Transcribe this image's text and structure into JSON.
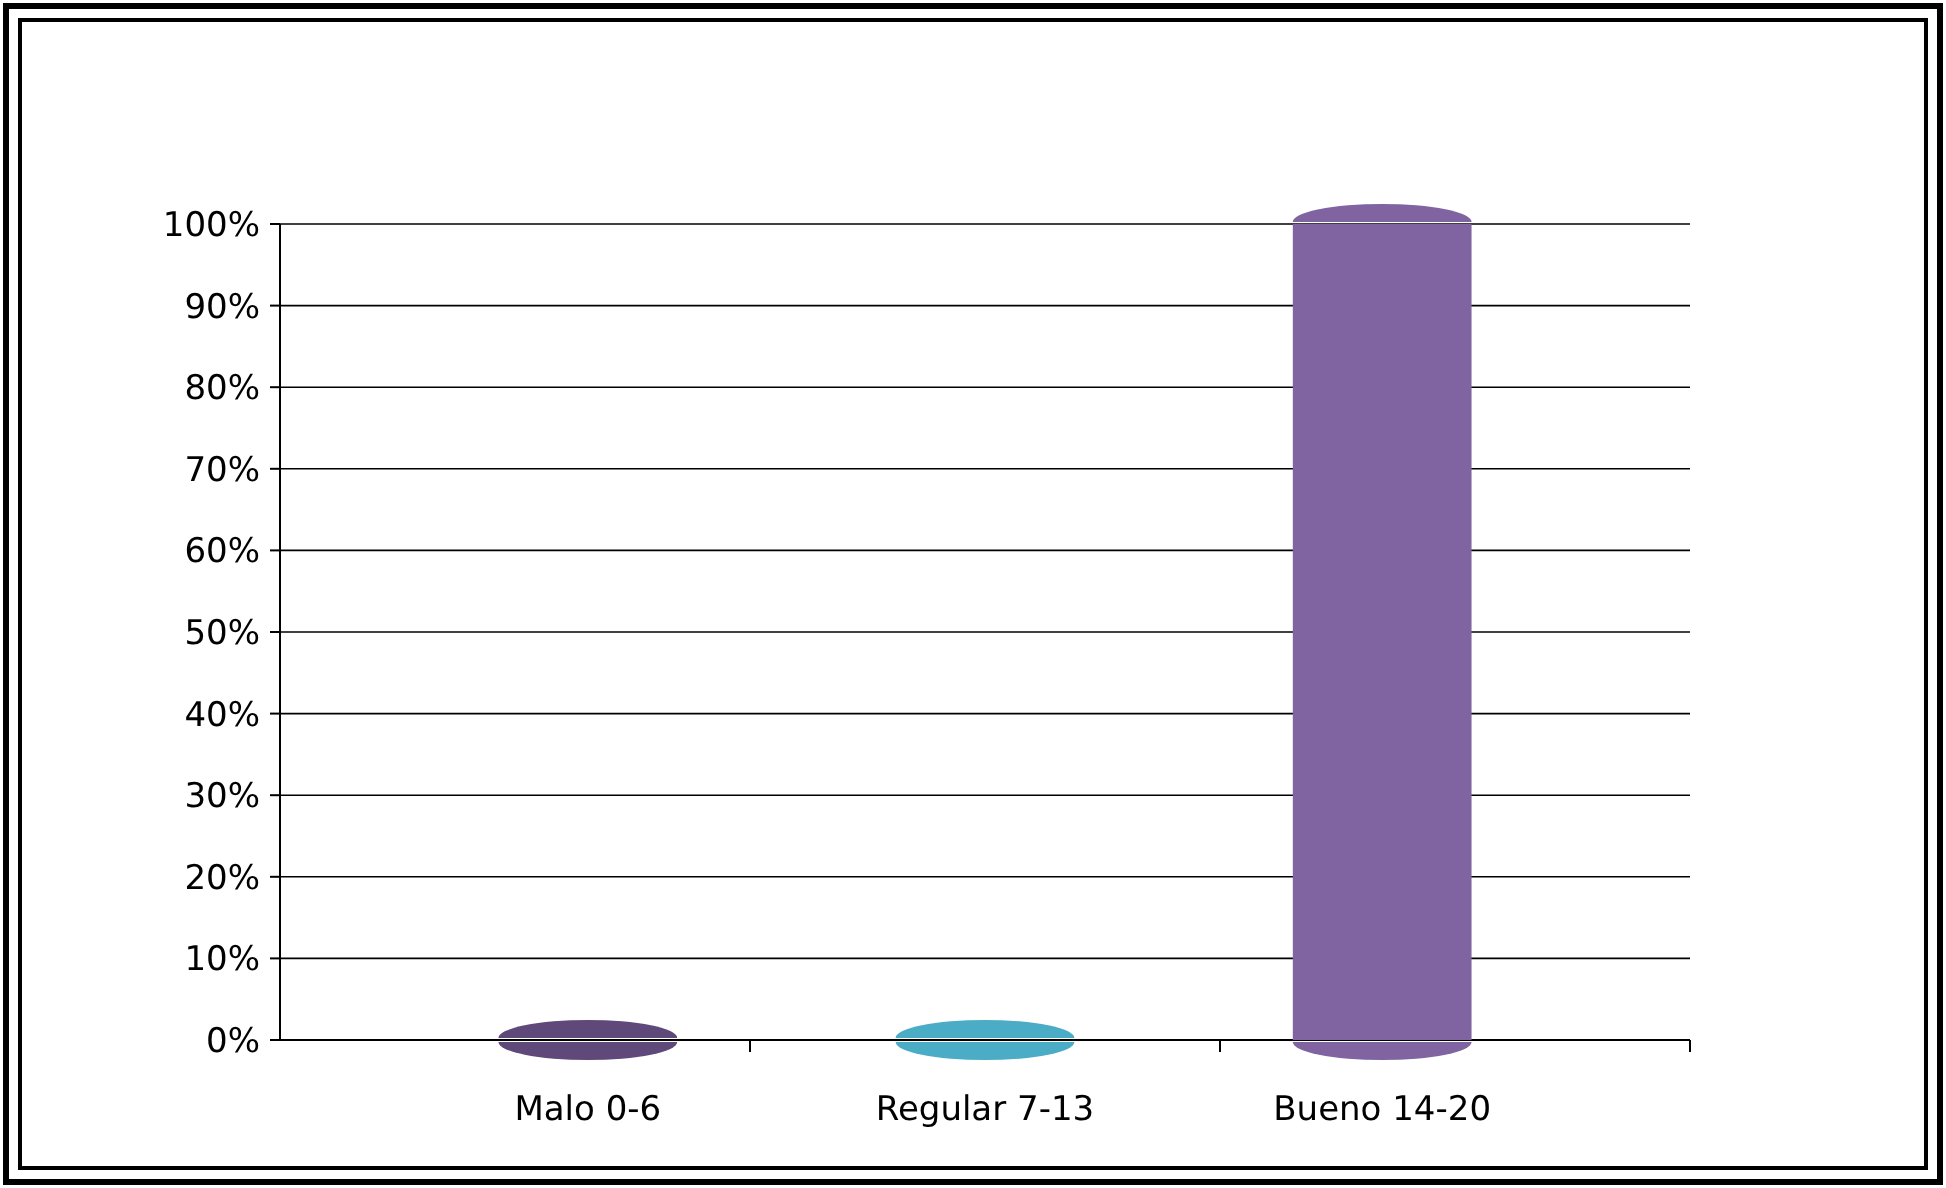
{
  "chart_data": {
    "type": "bar",
    "categories": [
      "Malo 0-6",
      "Regular 7-13",
      "Bueno 14-20"
    ],
    "values": [
      0,
      0,
      100
    ],
    "colors": [
      "#5f497a",
      "#4bacc6",
      "#8064a2"
    ],
    "ylim": [
      0,
      100
    ],
    "yticks": [
      {
        "value": 0,
        "label": "0%"
      },
      {
        "value": 10,
        "label": "10%"
      },
      {
        "value": 20,
        "label": "20%"
      },
      {
        "value": 30,
        "label": "30%"
      },
      {
        "value": 40,
        "label": "40%"
      },
      {
        "value": 50,
        "label": "50%"
      },
      {
        "value": 60,
        "label": "60%"
      },
      {
        "value": 70,
        "label": "70%"
      },
      {
        "value": 80,
        "label": "80%"
      },
      {
        "value": 90,
        "label": "90%"
      },
      {
        "value": 100,
        "label": "100%"
      }
    ],
    "grid": true
  }
}
